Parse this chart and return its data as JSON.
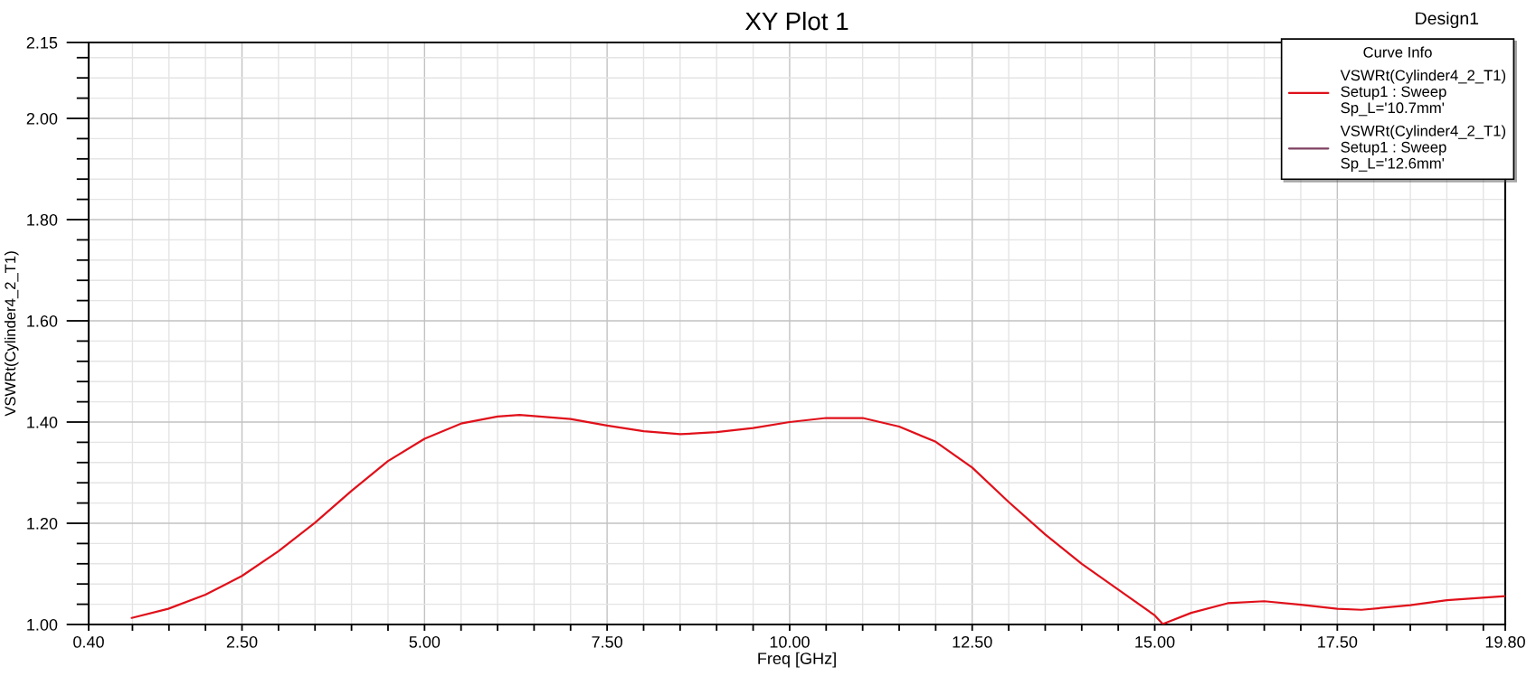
{
  "chart_data": {
    "type": "line",
    "title": "XY Plot 1",
    "xlabel": "Freq [GHz]",
    "ylabel": "VSWRt(Cylinder4_2_T1)",
    "legend_title": "Curve Info",
    "annotations": [
      "Design1"
    ],
    "x": [
      0.99,
      1.49,
      2.0,
      2.5,
      3.0,
      3.5,
      4.0,
      4.5,
      5.0,
      5.5,
      6.0,
      6.3,
      6.5,
      7.0,
      7.5,
      8.0,
      8.5,
      9.0,
      9.5,
      10.0,
      10.5,
      11.0,
      11.5,
      12.0,
      12.5,
      13.0,
      13.5,
      14.0,
      14.5,
      15.0,
      15.11,
      15.5,
      16.0,
      16.5,
      17.0,
      17.5,
      17.83,
      18.5,
      19.0,
      19.8
    ],
    "series": [
      {
        "name": "VSWRt(Cylinder4_2_T1)\nSetup1 : Sweep\nSp_L='10.7mm'",
        "color": "#e0101a",
        "values": [
          1.013,
          1.031,
          1.059,
          1.096,
          1.145,
          1.201,
          1.264,
          1.323,
          1.367,
          1.397,
          1.411,
          1.414,
          1.412,
          1.406,
          1.393,
          1.382,
          1.376,
          1.38,
          1.388,
          1.4,
          1.408,
          1.408,
          1.391,
          1.361,
          1.31,
          1.242,
          1.178,
          1.12,
          1.069,
          1.018,
          1.001,
          1.023,
          1.042,
          1.046,
          1.039,
          1.031,
          1.029,
          1.038,
          1.048,
          1.056
        ]
      },
      {
        "name": "VSWRt(Cylinder4_2_T1)\nSetup1 : Sweep\nSp_L='12.6mm'",
        "color": "#7d4060",
        "values": [
          null,
          null,
          null,
          null,
          null,
          null,
          null,
          null,
          null,
          null,
          null,
          null,
          null,
          null,
          null,
          null,
          null,
          null,
          null,
          null,
          null,
          null,
          null,
          null,
          null,
          null,
          null,
          null,
          null,
          null,
          null,
          null,
          null,
          null,
          null,
          null,
          null,
          null,
          null,
          null
        ]
      }
    ],
    "xlim": [
      0.4,
      19.8
    ],
    "ylim": [
      1.0,
      2.15
    ],
    "xticks": [
      {
        "value": 0.4,
        "label": "0.40"
      },
      {
        "value": 1.0,
        "label": null
      },
      {
        "value": 1.5,
        "label": null
      },
      {
        "value": 2.0,
        "label": null
      },
      {
        "value": 2.5,
        "label": "2.50"
      },
      {
        "value": 3.0,
        "label": null
      },
      {
        "value": 3.5,
        "label": null
      },
      {
        "value": 4.0,
        "label": null
      },
      {
        "value": 4.5,
        "label": null
      },
      {
        "value": 5.0,
        "label": "5.00"
      },
      {
        "value": 5.5,
        "label": null
      },
      {
        "value": 6.0,
        "label": null
      },
      {
        "value": 6.5,
        "label": null
      },
      {
        "value": 7.0,
        "label": null
      },
      {
        "value": 7.5,
        "label": "7.50"
      },
      {
        "value": 8.0,
        "label": null
      },
      {
        "value": 8.5,
        "label": null
      },
      {
        "value": 9.0,
        "label": null
      },
      {
        "value": 9.5,
        "label": null
      },
      {
        "value": 10.0,
        "label": "10.00"
      },
      {
        "value": 10.5,
        "label": null
      },
      {
        "value": 11.0,
        "label": null
      },
      {
        "value": 11.5,
        "label": null
      },
      {
        "value": 12.0,
        "label": null
      },
      {
        "value": 12.5,
        "label": "12.50"
      },
      {
        "value": 13.0,
        "label": null
      },
      {
        "value": 13.5,
        "label": null
      },
      {
        "value": 14.0,
        "label": null
      },
      {
        "value": 14.5,
        "label": null
      },
      {
        "value": 15.0,
        "label": "15.00"
      },
      {
        "value": 15.5,
        "label": null
      },
      {
        "value": 16.0,
        "label": null
      },
      {
        "value": 16.5,
        "label": null
      },
      {
        "value": 17.0,
        "label": null
      },
      {
        "value": 17.5,
        "label": "17.50"
      },
      {
        "value": 18.0,
        "label": null
      },
      {
        "value": 18.5,
        "label": null
      },
      {
        "value": 19.0,
        "label": null
      },
      {
        "value": 19.5,
        "label": null
      },
      {
        "value": 19.8,
        "label": "19.80"
      }
    ],
    "yticks": [
      {
        "value": 1.0,
        "label": "1.00"
      },
      {
        "value": 1.04,
        "label": null
      },
      {
        "value": 1.08,
        "label": null
      },
      {
        "value": 1.12,
        "label": null
      },
      {
        "value": 1.16,
        "label": null
      },
      {
        "value": 1.2,
        "label": "1.20"
      },
      {
        "value": 1.24,
        "label": null
      },
      {
        "value": 1.28,
        "label": null
      },
      {
        "value": 1.32,
        "label": null
      },
      {
        "value": 1.36,
        "label": null
      },
      {
        "value": 1.4,
        "label": "1.40"
      },
      {
        "value": 1.44,
        "label": null
      },
      {
        "value": 1.48,
        "label": null
      },
      {
        "value": 1.52,
        "label": null
      },
      {
        "value": 1.56,
        "label": null
      },
      {
        "value": 1.6,
        "label": "1.60"
      },
      {
        "value": 1.64,
        "label": null
      },
      {
        "value": 1.68,
        "label": null
      },
      {
        "value": 1.72,
        "label": null
      },
      {
        "value": 1.76,
        "label": null
      },
      {
        "value": 1.8,
        "label": "1.80"
      },
      {
        "value": 1.84,
        "label": null
      },
      {
        "value": 1.88,
        "label": null
      },
      {
        "value": 1.92,
        "label": null
      },
      {
        "value": 1.96,
        "label": null
      },
      {
        "value": 2.0,
        "label": "2.00"
      },
      {
        "value": 2.04,
        "label": null
      },
      {
        "value": 2.08,
        "label": null
      },
      {
        "value": 2.12,
        "label": null
      },
      {
        "value": 2.15,
        "label": "2.15"
      }
    ],
    "grid": true,
    "legend": "top right",
    "line_style": "solid"
  }
}
